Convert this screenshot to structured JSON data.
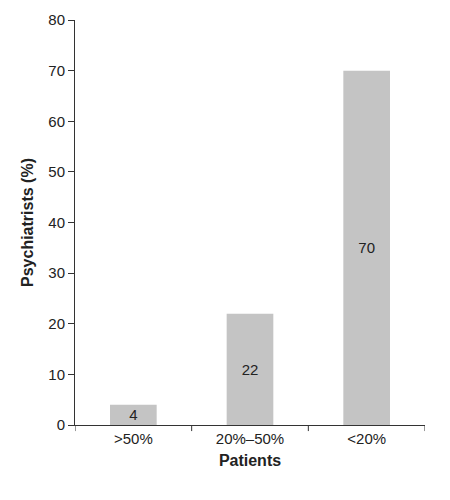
{
  "chart_data": {
    "type": "bar",
    "x_label": "Patients",
    "y_label": "Psychiatrists (%)",
    "categories": [
      ">50%",
      "20%–50%",
      "<20%"
    ],
    "values": [
      4,
      22,
      70
    ],
    "color": "#c4c4c4",
    "ylim": [
      0,
      80
    ],
    "yticks": [
      0,
      10,
      20,
      30,
      40,
      50,
      60,
      70,
      80
    ],
    "grid": false,
    "data_labels": true
  }
}
